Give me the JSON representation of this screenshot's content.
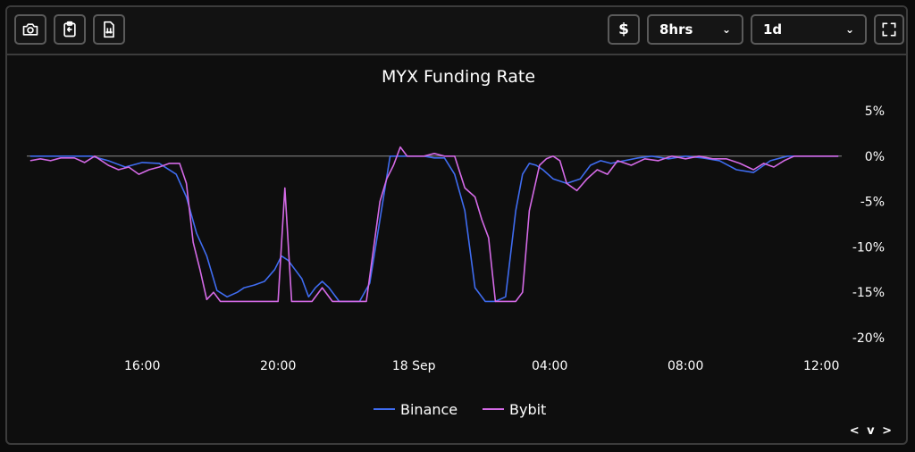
{
  "toolbar": {
    "camera_icon": "camera-icon",
    "clipboard_icon": "clipboard-icon",
    "download_icon": "file-download-icon",
    "currency_label": "$",
    "interval_label": "8hrs",
    "range_label": "1d",
    "fullscreen_icon": "fullscreen-icon"
  },
  "corner_nav": "< v >",
  "colors": {
    "binance": "#3f6cf0",
    "bybit": "#d46ae6",
    "background": "#0e0e0e",
    "zero_line": "#8a8a8a"
  },
  "chart_data": {
    "type": "line",
    "title": "MYX Funding Rate",
    "x_tick_labels": [
      "16:00",
      "20:00",
      "18 Sep",
      "04:00",
      "08:00",
      "12:00"
    ],
    "x_tick_hours": [
      16,
      20,
      24,
      28,
      32,
      36
    ],
    "y_tick_labels": [
      "5%",
      "0%",
      "-5%",
      "-10%",
      "-15%",
      "-20%"
    ],
    "y_tick_values": [
      5,
      0,
      -5,
      -10,
      -15,
      -20
    ],
    "xlim": [
      12.6,
      36.6
    ],
    "ylim": [
      -20,
      5
    ],
    "grid": false,
    "legend_position": "bottom-center",
    "series": [
      {
        "name": "Binance",
        "x": [
          12.7,
          13.5,
          14,
          14.5,
          15,
          15.5,
          16,
          16.5,
          17,
          17.3,
          17.6,
          17.9,
          18.2,
          18.5,
          18.8,
          19,
          19.3,
          19.6,
          19.9,
          20.1,
          20.3,
          20.5,
          20.7,
          20.9,
          21.1,
          21.3,
          21.5,
          21.8,
          22.1,
          22.4,
          22.7,
          23,
          23.3,
          23.6,
          23.9,
          24.3,
          24.6,
          24.9,
          25.2,
          25.5,
          25.8,
          26.1,
          26.4,
          26.7,
          27,
          27.2,
          27.4,
          27.6,
          27.8,
          28.1,
          28.5,
          28.9,
          29.2,
          29.5,
          29.8,
          30.2,
          30.6,
          31,
          31.5,
          32,
          32.5,
          33,
          33.5,
          34,
          34.5,
          35,
          35.5,
          36,
          36.5
        ],
        "y": [
          0,
          0,
          0,
          0,
          -0.5,
          -1.2,
          -0.7,
          -0.8,
          -2,
          -4.5,
          -8.5,
          -11,
          -14.8,
          -15.5,
          -15,
          -14.5,
          -14.2,
          -13.8,
          -12.5,
          -11,
          -11.5,
          -12.5,
          -13.5,
          -15.5,
          -14.5,
          -13.8,
          -14.5,
          -16,
          -16,
          -16,
          -14,
          -7,
          0,
          0,
          0,
          0,
          -0.2,
          -0.2,
          -2,
          -6,
          -14.5,
          -16,
          -16,
          -15.5,
          -6,
          -2,
          -0.8,
          -1,
          -1.5,
          -2.5,
          -3,
          -2.5,
          -1,
          -0.5,
          -0.8,
          -0.5,
          -0.2,
          0,
          -0.3,
          0,
          -0.2,
          -0.5,
          -1.5,
          -1.8,
          -0.5,
          0,
          0,
          0,
          0
        ]
      },
      {
        "name": "Bybit",
        "x": [
          12.7,
          13,
          13.3,
          13.6,
          14,
          14.3,
          14.6,
          15,
          15.3,
          15.6,
          15.9,
          16.2,
          16.5,
          16.8,
          17.1,
          17.3,
          17.5,
          17.7,
          17.9,
          18.1,
          18.3,
          18.6,
          19,
          19.5,
          20,
          20.2,
          20.4,
          20.6,
          21,
          21.3,
          21.6,
          21.9,
          22.2,
          22.6,
          23,
          23.2,
          23.4,
          23.6,
          23.8,
          24,
          24.3,
          24.6,
          24.9,
          25.2,
          25.5,
          25.8,
          26,
          26.2,
          26.4,
          26.7,
          27,
          27.2,
          27.4,
          27.7,
          27.9,
          28.1,
          28.3,
          28.5,
          28.8,
          29.1,
          29.4,
          29.7,
          30,
          30.4,
          30.8,
          31.2,
          31.6,
          32,
          32.4,
          32.8,
          33.2,
          33.6,
          34,
          34.3,
          34.6,
          34.9,
          35.2,
          35.5,
          36,
          36.5
        ],
        "y": [
          -0.5,
          -0.3,
          -0.5,
          -0.2,
          -0.2,
          -0.7,
          0,
          -1,
          -1.5,
          -1.2,
          -2,
          -1.5,
          -1.2,
          -0.8,
          -0.8,
          -3,
          -9.5,
          -12.5,
          -15.8,
          -15,
          -16,
          -16,
          -16,
          -16,
          -16,
          -3.5,
          -16,
          -16,
          -16,
          -14.5,
          -16,
          -16,
          -16,
          -16,
          -5,
          -2.5,
          -1,
          1,
          0,
          0,
          0,
          0.3,
          0,
          0,
          -3.5,
          -4.5,
          -7,
          -9,
          -16,
          -16,
          -16,
          -15,
          -6,
          -1,
          -0.3,
          0,
          -0.5,
          -3,
          -3.8,
          -2.5,
          -1.5,
          -2,
          -0.5,
          -1,
          -0.3,
          -0.5,
          0,
          -0.3,
          0,
          -0.3,
          -0.3,
          -0.8,
          -1.5,
          -0.8,
          -1.2,
          -0.5,
          0,
          0,
          0,
          0
        ]
      }
    ]
  }
}
